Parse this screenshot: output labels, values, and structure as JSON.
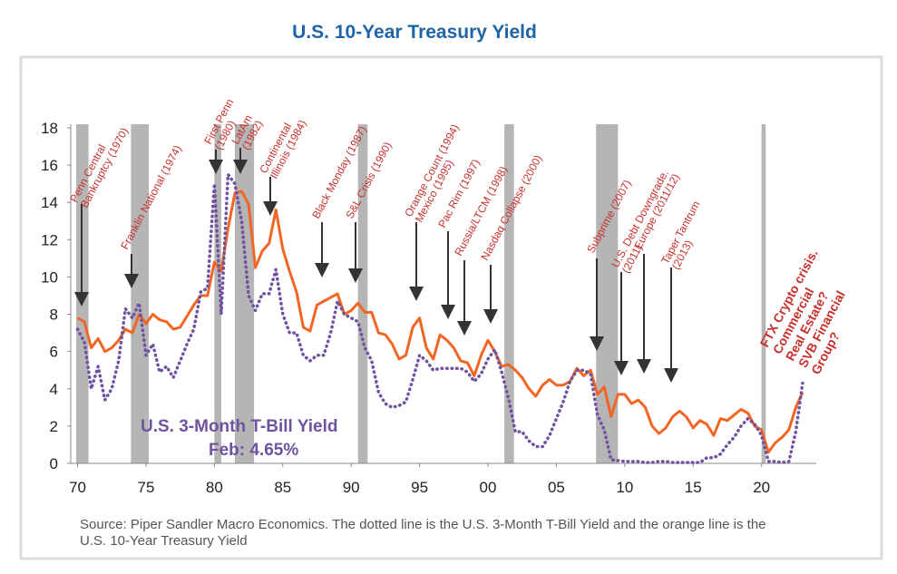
{
  "chart_data": {
    "type": "line",
    "title": "U.S. 10-Year Treasury Yield",
    "x": [
      1970,
      1970.5,
      1971,
      1971.5,
      1972,
      1972.5,
      1973,
      1973.5,
      1974,
      1974.5,
      1975,
      1975.5,
      1976,
      1976.5,
      1977,
      1977.5,
      1978,
      1978.5,
      1979,
      1979.5,
      1980,
      1980.5,
      1981,
      1981.5,
      1982,
      1982.5,
      1983,
      1983.5,
      1984,
      1984.5,
      1985,
      1985.5,
      1986,
      1986.5,
      1987,
      1987.5,
      1988,
      1988.5,
      1989,
      1989.5,
      1990,
      1990.5,
      1991,
      1991.5,
      1992,
      1992.5,
      1993,
      1993.5,
      1994,
      1994.5,
      1995,
      1995.5,
      1996,
      1996.5,
      1997,
      1997.5,
      1998,
      1998.5,
      1999,
      1999.5,
      2000,
      2000.5,
      2001,
      2001.5,
      2002,
      2002.5,
      2003,
      2003.5,
      2004,
      2004.5,
      2005,
      2005.5,
      2006,
      2006.5,
      2007,
      2007.5,
      2008,
      2008.5,
      2009,
      2009.5,
      2010,
      2010.5,
      2011,
      2011.5,
      2012,
      2012.5,
      2013,
      2013.5,
      2014,
      2014.5,
      2015,
      2015.5,
      2016,
      2016.5,
      2017,
      2017.5,
      2018,
      2018.5,
      2019,
      2019.5,
      2020,
      2020.5,
      2021,
      2021.5,
      2022,
      2022.5,
      2023
    ],
    "series": [
      {
        "color": "#f26522",
        "style": "solid",
        "values": [
          7.8,
          7.6,
          6.2,
          6.7,
          6.0,
          6.2,
          6.6,
          7.2,
          7.0,
          8.0,
          7.5,
          8.0,
          7.7,
          7.6,
          7.2,
          7.3,
          7.9,
          8.5,
          9.0,
          9.0,
          10.8,
          10.3,
          12.6,
          14.5,
          14.6,
          13.9,
          10.5,
          11.4,
          11.8,
          13.6,
          11.5,
          10.3,
          9.2,
          7.3,
          7.1,
          8.5,
          8.7,
          8.9,
          9.1,
          8.0,
          8.2,
          8.6,
          8.1,
          8.1,
          7.0,
          6.9,
          6.4,
          5.6,
          5.8,
          7.3,
          7.8,
          6.2,
          5.6,
          6.9,
          6.6,
          6.2,
          5.5,
          5.4,
          4.7,
          5.8,
          6.6,
          6.0,
          5.2,
          5.3,
          5.0,
          4.6,
          4.0,
          3.6,
          4.2,
          4.5,
          4.2,
          4.2,
          4.4,
          5.1,
          4.7,
          5.0,
          3.7,
          4.1,
          2.5,
          3.7,
          3.7,
          3.2,
          3.4,
          3.0,
          2.0,
          1.6,
          1.9,
          2.5,
          2.8,
          2.5,
          1.9,
          2.3,
          2.1,
          1.5,
          2.4,
          2.3,
          2.6,
          2.9,
          2.7,
          2.0,
          1.8,
          0.6,
          1.1,
          1.4,
          1.8,
          3.0,
          3.8
        ]
      },
      {
        "name": "U.S. 3-Month T-Bill Yield",
        "note": "Feb: 4.65%",
        "color": "#6f52a0",
        "style": "dotted",
        "values": [
          7.2,
          6.5,
          4.0,
          5.2,
          3.4,
          4.0,
          5.5,
          8.3,
          7.8,
          8.6,
          5.8,
          6.4,
          4.9,
          5.2,
          4.6,
          5.5,
          6.4,
          7.2,
          9.2,
          9.4,
          15.0,
          8.0,
          15.5,
          15.0,
          13.0,
          9.0,
          8.2,
          9.1,
          9.1,
          10.4,
          8.0,
          7.0,
          7.0,
          5.8,
          5.5,
          5.8,
          5.8,
          7.0,
          8.7,
          8.0,
          7.8,
          7.6,
          6.2,
          5.5,
          3.8,
          3.2,
          3.0,
          3.1,
          3.3,
          4.5,
          5.8,
          5.5,
          5.0,
          5.1,
          5.1,
          5.1,
          5.1,
          4.9,
          4.4,
          4.8,
          5.6,
          6.1,
          4.9,
          3.5,
          1.7,
          1.7,
          1.2,
          0.9,
          0.9,
          1.5,
          2.4,
          3.3,
          4.4,
          5.0,
          5.0,
          4.8,
          2.6,
          1.8,
          0.2,
          0.15,
          0.1,
          0.1,
          0.1,
          0.05,
          0.05,
          0.1,
          0.1,
          0.05,
          0.05,
          0.05,
          0.05,
          0.05,
          0.3,
          0.3,
          0.5,
          1.0,
          1.4,
          2.0,
          2.4,
          2.1,
          1.5,
          0.1,
          0.1,
          0.05,
          0.1,
          1.7,
          4.3
        ]
      }
    ],
    "recessions": [
      [
        1969.9,
        1970.8
      ],
      [
        1973.9,
        1975.2
      ],
      [
        1980.0,
        1980.5
      ],
      [
        1981.5,
        1982.9
      ],
      [
        1990.5,
        1991.2
      ],
      [
        2001.2,
        2001.9
      ],
      [
        2007.9,
        2009.5
      ],
      [
        2020.0,
        2020.3
      ]
    ],
    "recession_color": "#b5b5b5",
    "xlim": [
      1969.5,
      2024
    ],
    "xticks": [
      {
        "value": 1970,
        "label": "70"
      },
      {
        "value": 1975,
        "label": "75"
      },
      {
        "value": 1980,
        "label": "80"
      },
      {
        "value": 1985,
        "label": "85"
      },
      {
        "value": 1990,
        "label": "90"
      },
      {
        "value": 1995,
        "label": "95"
      },
      {
        "value": 2000,
        "label": "00"
      },
      {
        "value": 2005,
        "label": "05"
      },
      {
        "value": 2010,
        "label": "10"
      },
      {
        "value": 2015,
        "label": "15"
      },
      {
        "value": 2020,
        "label": "20"
      }
    ],
    "ylim": [
      0,
      18
    ],
    "yticks": [
      0,
      2,
      4,
      6,
      8,
      10,
      12,
      14,
      16,
      18
    ],
    "annotations": [
      {
        "lines": [
          "Penn Central",
          "Bankruptcy (1970)"
        ]
      },
      {
        "lines": [
          "Franklin National (1974)"
        ]
      },
      {
        "lines": [
          "First Penn",
          "(1980)"
        ]
      },
      {
        "lines": [
          "LatAm",
          "(1982)"
        ]
      },
      {
        "lines": [
          "Continental",
          "Illinois (1984)"
        ]
      },
      {
        "lines": [
          "Black Monday (1987)"
        ]
      },
      {
        "lines": [
          "S&L Crisis (1990)"
        ]
      },
      {
        "lines": [
          "Orange Count (1994)",
          "Mexico (1995)"
        ]
      },
      {
        "lines": [
          "Pac Rim (1997)"
        ]
      },
      {
        "lines": [
          "Russia/LTCM (1998)"
        ]
      },
      {
        "lines": [
          "Nasdaq Collapse (2000)"
        ]
      },
      {
        "lines": [
          "Subprime (2007)"
        ]
      },
      {
        "lines": [
          "U.S. Debt Downgrade.",
          "(2011)"
        ]
      },
      {
        "lines": [
          "Europe (2011/12)"
        ]
      },
      {
        "lines": [
          "Taper Tantrum",
          "(2013)"
        ]
      },
      {
        "lines": [
          "FTX Crypto crisis.",
          "Commercial",
          "Real Estate?",
          "SVB Financial",
          "Group?"
        ]
      }
    ],
    "source": [
      "Source: Piper Sandler Macro Economics. The dotted line is the U.S. 3-Month T-Bill Yield and the orange line is the",
      "U.S. 10-Year Treasury Yield"
    ]
  }
}
